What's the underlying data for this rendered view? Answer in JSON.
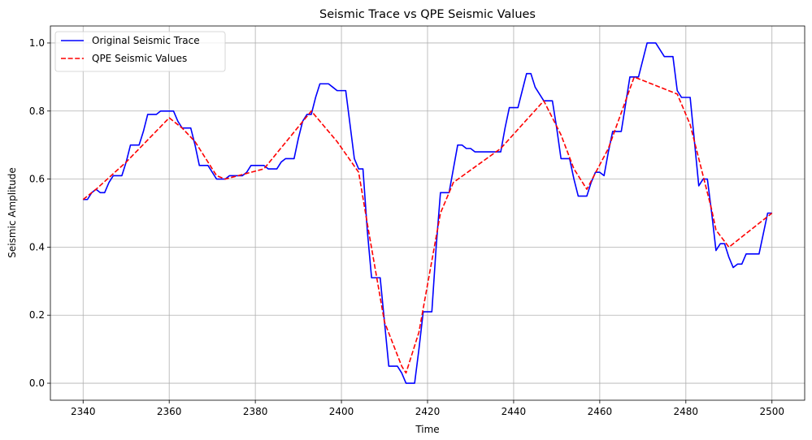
{
  "chart_data": {
    "type": "line",
    "title": "Seismic Trace vs QPE Seismic Values",
    "xlabel": "Time",
    "ylabel": "Seismic Amplitude",
    "xlim": [
      2332.4,
      2507.6
    ],
    "ylim": [
      -0.05,
      1.05
    ],
    "xticks": [
      2340,
      2360,
      2380,
      2400,
      2420,
      2440,
      2460,
      2480,
      2500
    ],
    "yticks": [
      0.0,
      0.2,
      0.4,
      0.6,
      0.8,
      1.0
    ],
    "xtick_labels": [
      "2340",
      "2360",
      "2380",
      "2400",
      "2420",
      "2440",
      "2460",
      "2480",
      "2500"
    ],
    "ytick_labels": [
      "0.0",
      "0.2",
      "0.4",
      "0.6",
      "0.8",
      "1.0"
    ],
    "grid": true,
    "legend_position": "top-left",
    "series": [
      {
        "name": "Original Seismic Trace",
        "color": "#0000ff",
        "style": "solid",
        "points": [
          [
            2340,
            0.54
          ],
          [
            2341,
            0.54
          ],
          [
            2342,
            0.56
          ],
          [
            2343,
            0.57
          ],
          [
            2344,
            0.56
          ],
          [
            2345,
            0.56
          ],
          [
            2346,
            0.59
          ],
          [
            2347,
            0.61
          ],
          [
            2348,
            0.61
          ],
          [
            2349,
            0.61
          ],
          [
            2350,
            0.65
          ],
          [
            2351,
            0.7
          ],
          [
            2352,
            0.7
          ],
          [
            2353,
            0.7
          ],
          [
            2354,
            0.74
          ],
          [
            2355,
            0.79
          ],
          [
            2356,
            0.79
          ],
          [
            2357,
            0.79
          ],
          [
            2358,
            0.8
          ],
          [
            2359,
            0.8
          ],
          [
            2360,
            0.8
          ],
          [
            2361,
            0.8
          ],
          [
            2362,
            0.77
          ],
          [
            2363,
            0.75
          ],
          [
            2364,
            0.75
          ],
          [
            2365,
            0.75
          ],
          [
            2366,
            0.7
          ],
          [
            2367,
            0.64
          ],
          [
            2368,
            0.64
          ],
          [
            2369,
            0.64
          ],
          [
            2370,
            0.62
          ],
          [
            2371,
            0.6
          ],
          [
            2372,
            0.6
          ],
          [
            2373,
            0.6
          ],
          [
            2374,
            0.61
          ],
          [
            2375,
            0.61
          ],
          [
            2376,
            0.61
          ],
          [
            2377,
            0.61
          ],
          [
            2378,
            0.62
          ],
          [
            2379,
            0.64
          ],
          [
            2380,
            0.64
          ],
          [
            2381,
            0.64
          ],
          [
            2382,
            0.64
          ],
          [
            2383,
            0.63
          ],
          [
            2384,
            0.63
          ],
          [
            2385,
            0.63
          ],
          [
            2386,
            0.65
          ],
          [
            2387,
            0.66
          ],
          [
            2388,
            0.66
          ],
          [
            2389,
            0.66
          ],
          [
            2390,
            0.72
          ],
          [
            2391,
            0.77
          ],
          [
            2392,
            0.79
          ],
          [
            2393,
            0.79
          ],
          [
            2394,
            0.84
          ],
          [
            2395,
            0.88
          ],
          [
            2396,
            0.88
          ],
          [
            2397,
            0.88
          ],
          [
            2398,
            0.87
          ],
          [
            2399,
            0.86
          ],
          [
            2400,
            0.86
          ],
          [
            2401,
            0.86
          ],
          [
            2402,
            0.76
          ],
          [
            2403,
            0.66
          ],
          [
            2404,
            0.63
          ],
          [
            2405,
            0.63
          ],
          [
            2406,
            0.45
          ],
          [
            2407,
            0.31
          ],
          [
            2408,
            0.31
          ],
          [
            2409,
            0.31
          ],
          [
            2410,
            0.18
          ],
          [
            2411,
            0.05
          ],
          [
            2412,
            0.05
          ],
          [
            2413,
            0.05
          ],
          [
            2414,
            0.03
          ],
          [
            2415,
            0.0
          ],
          [
            2416,
            0.0
          ],
          [
            2417,
            0.0
          ],
          [
            2418,
            0.1
          ],
          [
            2419,
            0.21
          ],
          [
            2420,
            0.21
          ],
          [
            2421,
            0.21
          ],
          [
            2422,
            0.4
          ],
          [
            2423,
            0.56
          ],
          [
            2424,
            0.56
          ],
          [
            2425,
            0.56
          ],
          [
            2426,
            0.63
          ],
          [
            2427,
            0.7
          ],
          [
            2428,
            0.7
          ],
          [
            2429,
            0.69
          ],
          [
            2430,
            0.69
          ],
          [
            2431,
            0.68
          ],
          [
            2432,
            0.68
          ],
          [
            2433,
            0.68
          ],
          [
            2434,
            0.68
          ],
          [
            2435,
            0.68
          ],
          [
            2436,
            0.68
          ],
          [
            2437,
            0.68
          ],
          [
            2438,
            0.75
          ],
          [
            2439,
            0.81
          ],
          [
            2440,
            0.81
          ],
          [
            2441,
            0.81
          ],
          [
            2442,
            0.86
          ],
          [
            2443,
            0.91
          ],
          [
            2444,
            0.91
          ],
          [
            2445,
            0.87
          ],
          [
            2446,
            0.85
          ],
          [
            2447,
            0.83
          ],
          [
            2448,
            0.83
          ],
          [
            2449,
            0.83
          ],
          [
            2450,
            0.75
          ],
          [
            2451,
            0.66
          ],
          [
            2452,
            0.66
          ],
          [
            2453,
            0.66
          ],
          [
            2454,
            0.6
          ],
          [
            2455,
            0.55
          ],
          [
            2456,
            0.55
          ],
          [
            2457,
            0.55
          ],
          [
            2458,
            0.59
          ],
          [
            2459,
            0.62
          ],
          [
            2460,
            0.62
          ],
          [
            2461,
            0.61
          ],
          [
            2462,
            0.68
          ],
          [
            2463,
            0.74
          ],
          [
            2464,
            0.74
          ],
          [
            2465,
            0.74
          ],
          [
            2466,
            0.82
          ],
          [
            2467,
            0.9
          ],
          [
            2468,
            0.9
          ],
          [
            2469,
            0.9
          ],
          [
            2470,
            0.95
          ],
          [
            2471,
            1.0
          ],
          [
            2472,
            1.0
          ],
          [
            2473,
            1.0
          ],
          [
            2474,
            0.98
          ],
          [
            2475,
            0.96
          ],
          [
            2476,
            0.96
          ],
          [
            2477,
            0.96
          ],
          [
            2478,
            0.86
          ],
          [
            2479,
            0.84
          ],
          [
            2480,
            0.84
          ],
          [
            2481,
            0.84
          ],
          [
            2482,
            0.71
          ],
          [
            2483,
            0.58
          ],
          [
            2484,
            0.6
          ],
          [
            2485,
            0.6
          ],
          [
            2486,
            0.5
          ],
          [
            2487,
            0.39
          ],
          [
            2488,
            0.41
          ],
          [
            2489,
            0.41
          ],
          [
            2490,
            0.37
          ],
          [
            2491,
            0.34
          ],
          [
            2492,
            0.35
          ],
          [
            2493,
            0.35
          ],
          [
            2494,
            0.38
          ],
          [
            2495,
            0.38
          ],
          [
            2496,
            0.38
          ],
          [
            2497,
            0.38
          ],
          [
            2498,
            0.44
          ],
          [
            2499,
            0.5
          ],
          [
            2500,
            0.5
          ]
        ]
      },
      {
        "name": "QPE Seismic Values",
        "color": "#ff0000",
        "style": "dashed",
        "points": [
          [
            2340,
            0.54
          ],
          [
            2343,
            0.57
          ],
          [
            2350,
            0.65
          ],
          [
            2360,
            0.78
          ],
          [
            2363,
            0.75
          ],
          [
            2366,
            0.71
          ],
          [
            2371,
            0.61
          ],
          [
            2373,
            0.6
          ],
          [
            2376,
            0.61
          ],
          [
            2382,
            0.63
          ],
          [
            2393,
            0.8
          ],
          [
            2399,
            0.71
          ],
          [
            2404,
            0.62
          ],
          [
            2406,
            0.47
          ],
          [
            2410,
            0.18
          ],
          [
            2414,
            0.05
          ],
          [
            2415,
            0.03
          ],
          [
            2418,
            0.15
          ],
          [
            2421,
            0.36
          ],
          [
            2423,
            0.5
          ],
          [
            2426,
            0.59
          ],
          [
            2437,
            0.69
          ],
          [
            2447,
            0.83
          ],
          [
            2451,
            0.73
          ],
          [
            2454,
            0.63
          ],
          [
            2457,
            0.57
          ],
          [
            2462,
            0.69
          ],
          [
            2468,
            0.9
          ],
          [
            2478,
            0.85
          ],
          [
            2481,
            0.76
          ],
          [
            2483,
            0.66
          ],
          [
            2486,
            0.51
          ],
          [
            2487,
            0.45
          ],
          [
            2490,
            0.4
          ],
          [
            2500,
            0.5
          ]
        ]
      }
    ]
  }
}
